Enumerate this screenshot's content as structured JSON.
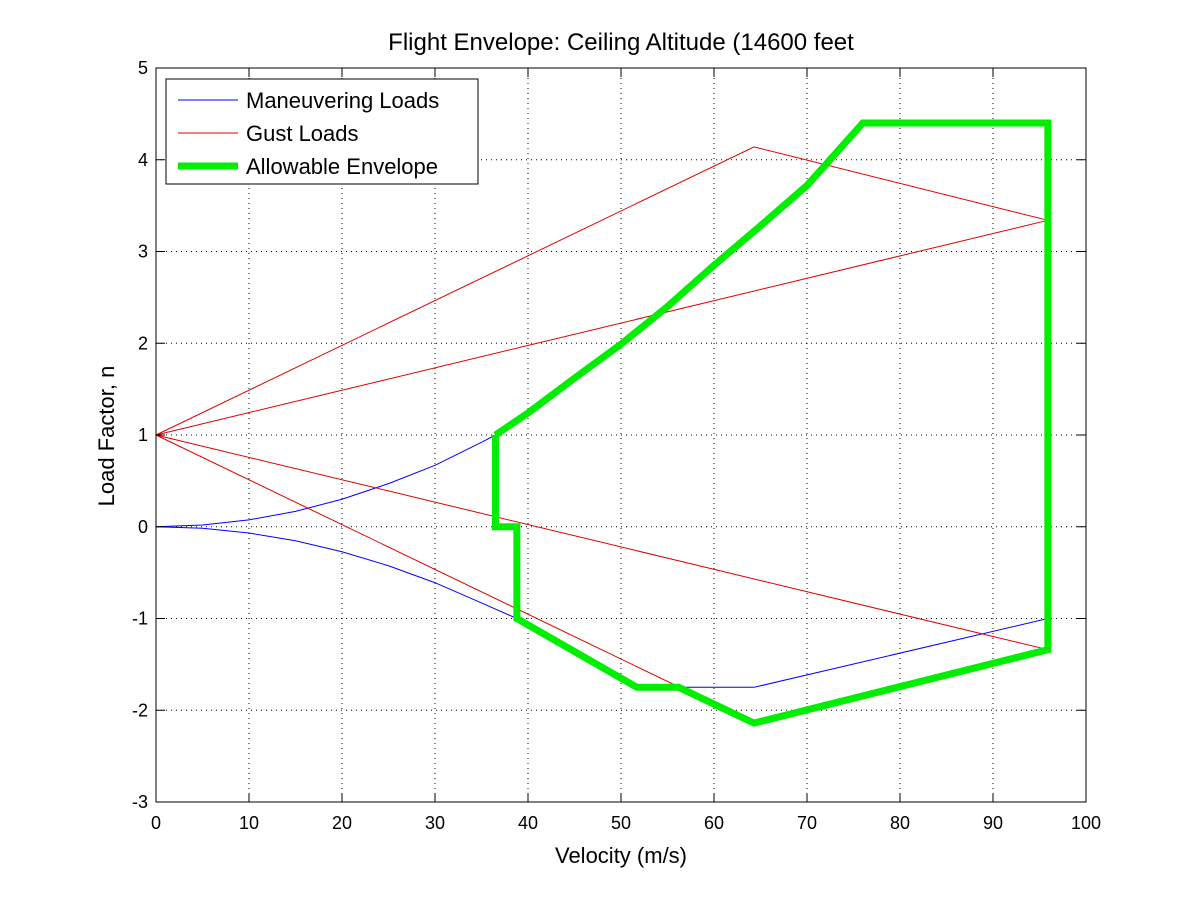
{
  "chart_data": {
    "type": "line",
    "title": "Flight Envelope: Ceiling Altitude (14600 feet",
    "xlabel": "Velocity (m/s)",
    "ylabel": "Load Factor, n",
    "xlim": [
      0,
      100
    ],
    "ylim": [
      -3,
      5
    ],
    "xticks": [
      0,
      10,
      20,
      30,
      40,
      50,
      60,
      70,
      80,
      90,
      100
    ],
    "yticks": [
      -3,
      -2,
      -1,
      0,
      1,
      2,
      3,
      4,
      5
    ],
    "grid": true,
    "legend_position": "top-left",
    "series": [
      {
        "name": "Maneuvering Loads",
        "color": "#0000ff",
        "segments": [
          [
            [
              0,
              0
            ],
            [
              5,
              0.019
            ],
            [
              10,
              0.075
            ],
            [
              15,
              0.168
            ],
            [
              20,
              0.3
            ],
            [
              25,
              0.47
            ],
            [
              30,
              0.67
            ],
            [
              35,
              0.92
            ],
            [
              36.5,
              1.0
            ]
          ],
          [
            [
              0,
              0
            ],
            [
              5,
              -0.017
            ],
            [
              10,
              -0.068
            ],
            [
              15,
              -0.153
            ],
            [
              20,
              -0.272
            ],
            [
              25,
              -0.425
            ],
            [
              30,
              -0.61
            ],
            [
              35,
              -0.83
            ],
            [
              38.8,
              -1.0
            ],
            [
              45,
              -1.35
            ],
            [
              51.7,
              -1.75
            ],
            [
              64.3,
              -1.75
            ],
            [
              95.9,
              -1.0
            ]
          ]
        ]
      },
      {
        "name": "Gust Loads",
        "color": "#e00000",
        "segments": [
          [
            [
              0,
              1
            ],
            [
              64.3,
              4.14
            ],
            [
              95.9,
              3.34
            ]
          ],
          [
            [
              0,
              1
            ],
            [
              95.9,
              3.34
            ]
          ],
          [
            [
              0,
              1
            ],
            [
              64.3,
              -2.14
            ],
            [
              95.9,
              -1.34
            ]
          ],
          [
            [
              0,
              1
            ],
            [
              95.9,
              -1.34
            ]
          ]
        ]
      },
      {
        "name": "Allowable Envelope",
        "color": "#00ee00",
        "segments": [
          [
            [
              36.5,
              1.0
            ],
            [
              40,
              1.24
            ],
            [
              45,
              1.62
            ],
            [
              50,
              1.99
            ],
            [
              55,
              2.4
            ],
            [
              60,
              2.85
            ],
            [
              65,
              3.28
            ],
            [
              70,
              3.72
            ],
            [
              76,
              4.4
            ],
            [
              95.9,
              4.4
            ],
            [
              95.9,
              -1.34
            ],
            [
              64.3,
              -2.14
            ],
            [
              56.2,
              -1.75
            ],
            [
              51.7,
              -1.75
            ],
            [
              38.8,
              -1.0
            ],
            [
              38.8,
              0
            ],
            [
              36.5,
              0
            ],
            [
              36.5,
              1.0
            ]
          ]
        ]
      }
    ]
  }
}
